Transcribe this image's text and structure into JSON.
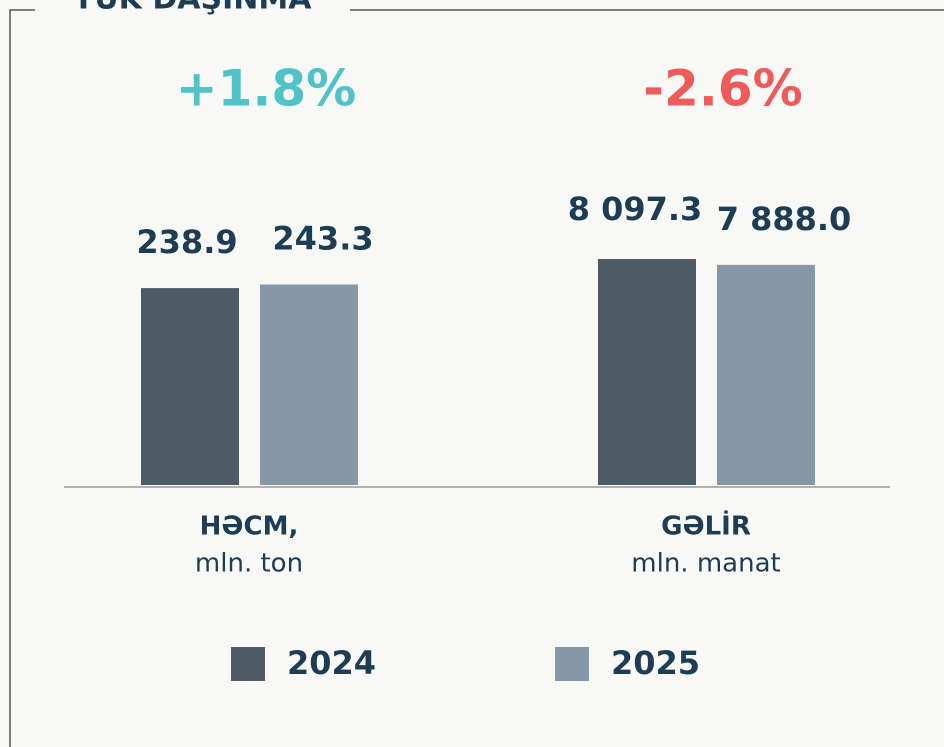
{
  "title": "YÜK DAŞINMA",
  "chart_data": [
    {
      "type": "bar",
      "annotation": "+1.8%",
      "annotation_color": "#4fc3c8",
      "title": "HƏCM,",
      "subtitle": "mln. ton",
      "ylim": [
        0,
        364
      ],
      "series": [
        {
          "name": "2024",
          "color": "#4e5a64",
          "values": [
            238.9
          ]
        },
        {
          "name": "2025",
          "color": "#8698a5",
          "values": [
            243.3
          ]
        }
      ]
    },
    {
      "type": "bar",
      "annotation": "-2.6%",
      "annotation_color": "#ef5a5a",
      "title": "GƏLİR",
      "subtitle": "mln. manat",
      "ylim": [
        0,
        10750
      ],
      "series": [
        {
          "name": "2024",
          "color": "#4e5a64",
          "values": [
            8097.3
          ],
          "value_labels": [
            "8 097.3"
          ]
        },
        {
          "name": "2025",
          "color": "#8698a5",
          "values": [
            7888.0
          ],
          "value_labels": [
            "7 888.0"
          ]
        }
      ]
    }
  ]
}
